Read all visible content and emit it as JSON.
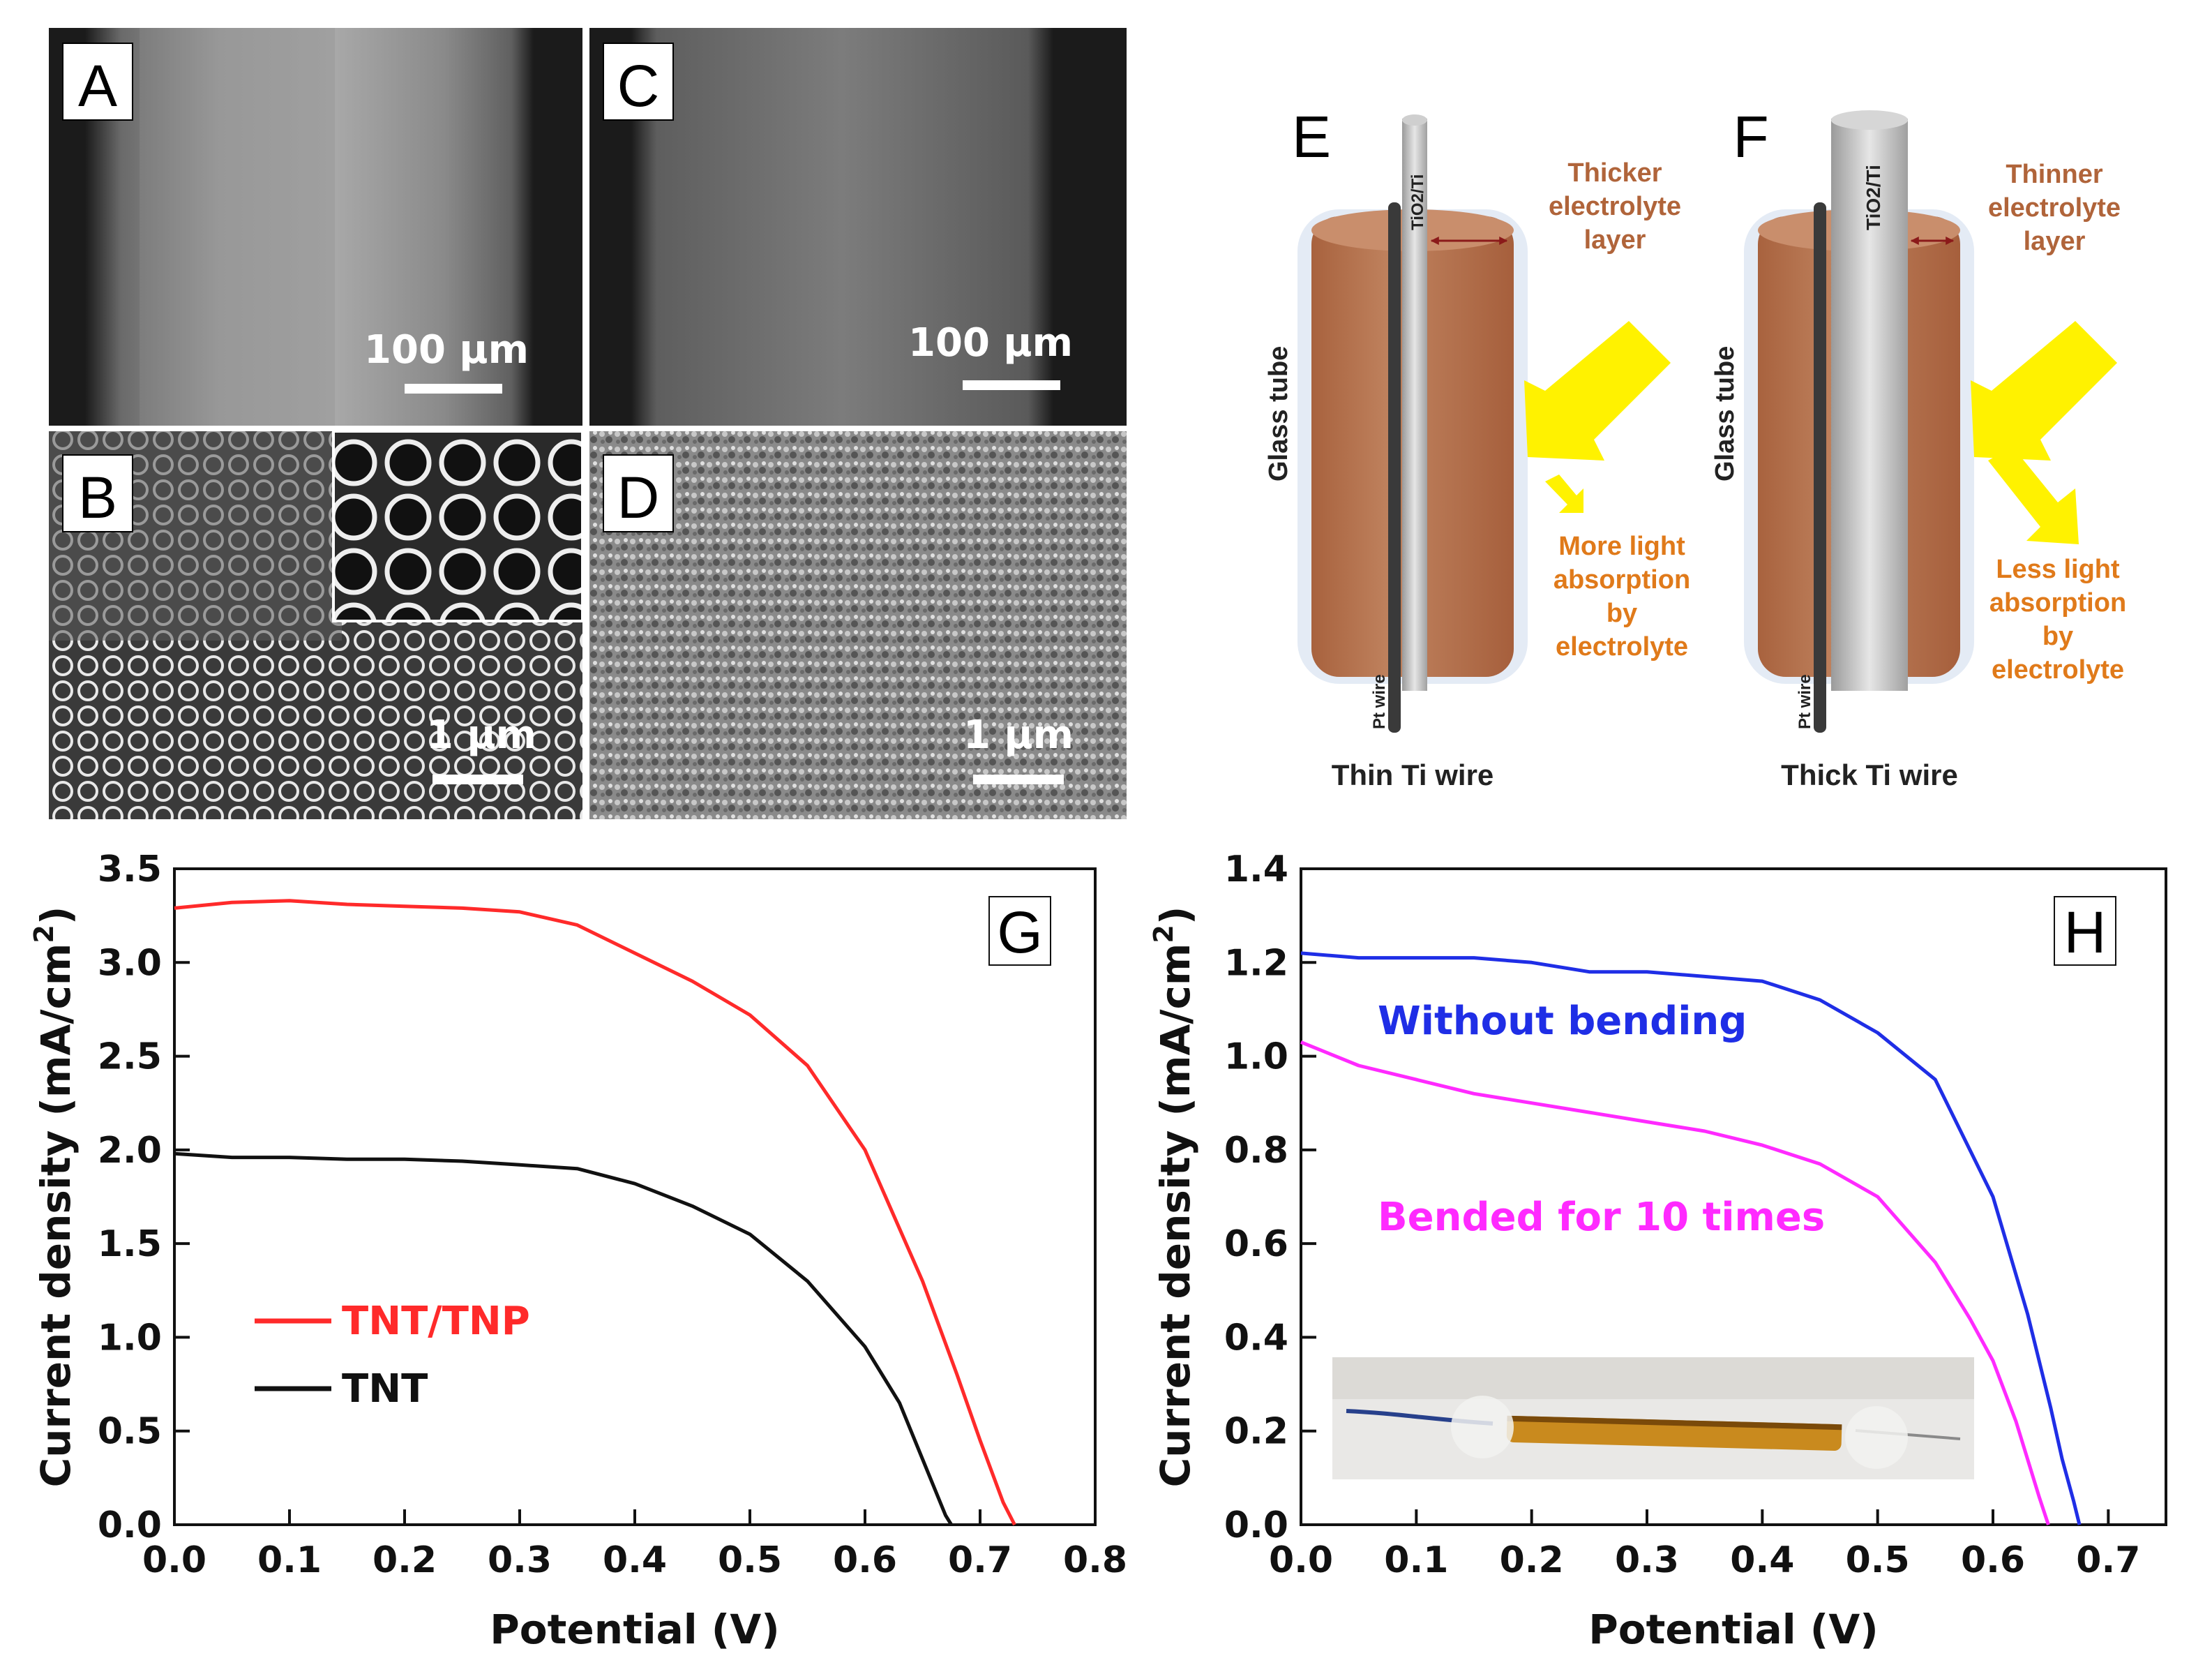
{
  "sem": {
    "A": {
      "label": "A",
      "scale": "100 μm"
    },
    "B": {
      "label": "B",
      "scale": "1 μm"
    },
    "C": {
      "label": "C",
      "scale": "100 μm"
    },
    "D": {
      "label": "D",
      "scale": "1 μm"
    }
  },
  "diagram_E": {
    "label": "E",
    "wire_label": "TiO2/Ti",
    "electrolyte": "Thicker electrolyte layer",
    "electrolyte_lines": [
      "Thicker",
      "electrolyte",
      "layer"
    ],
    "tube": "Glass tube",
    "pt": "Pt wire",
    "absorption_lines": [
      "More light",
      "absorption",
      "by",
      "electrolyte"
    ],
    "caption": "Thin Ti wire"
  },
  "diagram_F": {
    "label": "F",
    "wire_label": "TiO2/Ti",
    "electrolyte_lines": [
      "Thinner",
      "electrolyte",
      "layer"
    ],
    "tube": "Glass tube",
    "pt": "Pt wire",
    "absorption_lines": [
      "Less light",
      "absorption",
      "by",
      "electrolyte"
    ],
    "caption": "Thick Ti wire"
  },
  "colors": {
    "tnt_tnp": "#ff2a2a",
    "tnt": "#111111",
    "without": "#1f2ee6",
    "bended": "#ff2aff",
    "electrolyte": "#b87452",
    "arrow": "#fff200"
  },
  "chart_data": [
    {
      "panel": "G",
      "type": "line",
      "xlabel": "Potential (V)",
      "ylabel": "Current density (mA/cm2)",
      "ylabel_main": "Current density (mA/cm",
      "ylabel_sup": "2",
      "ylabel_close": ")",
      "xlim": [
        0.0,
        0.8
      ],
      "ylim": [
        0.0,
        3.5
      ],
      "xticks": [
        "0.0",
        "0.1",
        "0.2",
        "0.3",
        "0.4",
        "0.5",
        "0.6",
        "0.7",
        "0.8"
      ],
      "yticks": [
        "0.0",
        "0.5",
        "1.0",
        "1.5",
        "2.0",
        "2.5",
        "3.0",
        "3.5"
      ],
      "series": [
        {
          "name": "TNT/TNP",
          "color": "#ff2a2a",
          "x": [
            0.0,
            0.05,
            0.1,
            0.15,
            0.2,
            0.25,
            0.3,
            0.35,
            0.4,
            0.45,
            0.5,
            0.55,
            0.6,
            0.65,
            0.68,
            0.7,
            0.72,
            0.73
          ],
          "y": [
            3.29,
            3.32,
            3.33,
            3.31,
            3.3,
            3.29,
            3.27,
            3.2,
            3.05,
            2.9,
            2.72,
            2.45,
            2.0,
            1.3,
            0.8,
            0.45,
            0.12,
            0.0
          ]
        },
        {
          "name": "TNT",
          "color": "#111111",
          "x": [
            0.0,
            0.05,
            0.1,
            0.15,
            0.2,
            0.25,
            0.3,
            0.35,
            0.4,
            0.45,
            0.5,
            0.55,
            0.6,
            0.63,
            0.65,
            0.66,
            0.67,
            0.675
          ],
          "y": [
            1.98,
            1.96,
            1.96,
            1.95,
            1.95,
            1.94,
            1.92,
            1.9,
            1.82,
            1.7,
            1.55,
            1.3,
            0.95,
            0.65,
            0.35,
            0.2,
            0.05,
            0.0
          ]
        }
      ]
    },
    {
      "panel": "H",
      "type": "line",
      "xlabel": "Potential (V)",
      "ylabel": "Current density (mA/cm2)",
      "ylabel_main": "Current density (mA/cm",
      "ylabel_sup": "2",
      "ylabel_close": ")",
      "xlim": [
        0.0,
        0.75
      ],
      "ylim": [
        0.0,
        1.4
      ],
      "xticks": [
        "0.0",
        "0.1",
        "0.2",
        "0.3",
        "0.4",
        "0.5",
        "0.6",
        "0.7"
      ],
      "yticks": [
        "0.0",
        "0.2",
        "0.4",
        "0.6",
        "0.8",
        "1.0",
        "1.2",
        "1.4"
      ],
      "series": [
        {
          "name": "Without bending",
          "color": "#1f2ee6",
          "x": [
            0.0,
            0.05,
            0.1,
            0.15,
            0.2,
            0.25,
            0.3,
            0.35,
            0.4,
            0.45,
            0.5,
            0.55,
            0.6,
            0.63,
            0.65,
            0.66,
            0.67,
            0.675
          ],
          "y": [
            1.22,
            1.21,
            1.21,
            1.21,
            1.2,
            1.18,
            1.18,
            1.17,
            1.16,
            1.12,
            1.05,
            0.95,
            0.7,
            0.45,
            0.25,
            0.14,
            0.05,
            0.0
          ]
        },
        {
          "name": "Bended for 10 times",
          "color": "#ff2aff",
          "x": [
            0.0,
            0.05,
            0.1,
            0.15,
            0.2,
            0.25,
            0.3,
            0.35,
            0.4,
            0.45,
            0.5,
            0.55,
            0.58,
            0.6,
            0.62,
            0.63,
            0.64,
            0.648
          ],
          "y": [
            1.03,
            0.98,
            0.95,
            0.92,
            0.9,
            0.88,
            0.86,
            0.84,
            0.81,
            0.77,
            0.7,
            0.56,
            0.44,
            0.35,
            0.22,
            0.14,
            0.06,
            0.0
          ]
        }
      ]
    }
  ]
}
